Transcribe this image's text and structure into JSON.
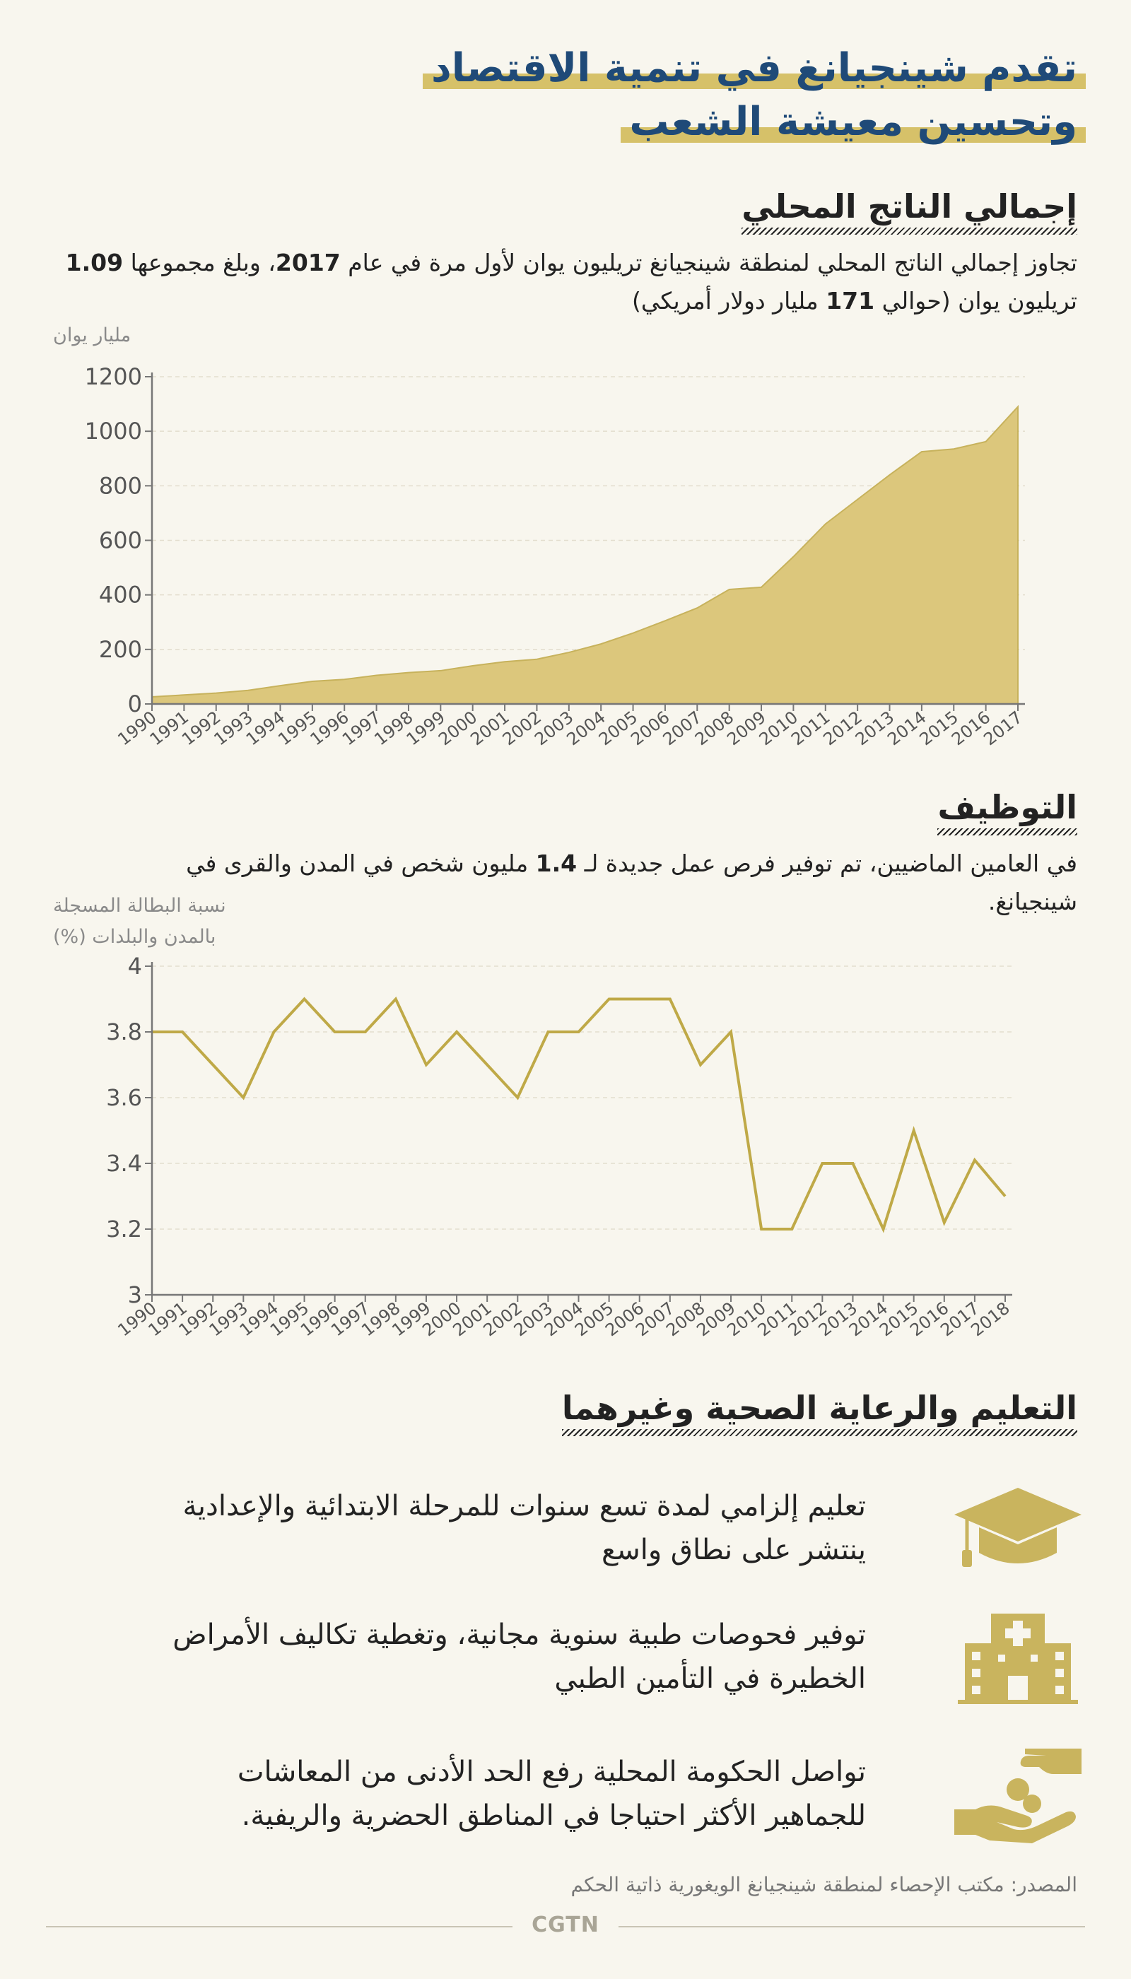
{
  "title": {
    "line1": "تقدم شينجيانغ في تنمية الاقتصاد",
    "line2": "وتحسين معيشة الشعب"
  },
  "gdp": {
    "heading": "إجمالي الناتج المحلي",
    "text_a": "تجاوز إجمالي الناتج المحلي لمنطقة شينجيانغ تريليون يوان لأول مرة في عام ",
    "year": "2017",
    "text_b": "، وبلغ مجموعها",
    "amount": "1.09",
    "text_c": " تريليون يوان (حوالي ",
    "usd": "171",
    "text_d": " مليار دولار أمريكي)",
    "unit_label": "مليار يوان"
  },
  "employment": {
    "heading": "التوظيف",
    "text_a": "في العامين الماضيين، تم توفير فرص عمل جديدة لـ ",
    "jobs": "1.4",
    "text_b": " مليون شخص في المدن والقرى في شينجيانغ.",
    "unit_label_1": "نسبة البطالة المسجلة",
    "unit_label_2": "بالمدن والبلدات (%)"
  },
  "social": {
    "heading": "التعليم والرعاية الصحية وغيرهما",
    "items": [
      {
        "icon": "graduation-cap-icon",
        "text": "تعليم إلزامي لمدة تسع سنوات للمرحلة الابتدائية والإعدادية ينتشر على نطاق واسع"
      },
      {
        "icon": "hospital-icon",
        "text": "توفير فحوصات طبية سنوية مجانية، وتغطية تكاليف الأمراض الخطيرة في التأمين الطبي"
      },
      {
        "icon": "hand-coins-icon",
        "text": "تواصل الحكومة المحلية رفع الحد الأدنى من المعاشات للجماهير الأكثر احتياجا في المناطق الحضرية والريفية."
      }
    ]
  },
  "source": "المصدر: مكتب الإحصاء لمنطقة شينجيانغ الويغورية ذاتية الحكم",
  "brand": "CGTN",
  "colors": {
    "accent": "#d6c169",
    "area_fill": "#d9c57a",
    "line": "#bfa947",
    "title": "#1f4a78"
  },
  "chart_data": [
    {
      "type": "area",
      "title": "إجمالي الناتج المحلي",
      "ylabel": "مليار يوان",
      "xlabel": "",
      "ylim": [
        0,
        1200
      ],
      "yticks": [
        0,
        200,
        400,
        600,
        800,
        1000,
        1200
      ],
      "categories": [
        "1990",
        "1991",
        "1992",
        "1993",
        "1994",
        "1995",
        "1996",
        "1997",
        "1998",
        "1999",
        "2000",
        "2001",
        "2002",
        "2003",
        "2004",
        "2005",
        "2006",
        "2007",
        "2008",
        "2009",
        "2010",
        "2011",
        "2012",
        "2013",
        "2014",
        "2015",
        "2016",
        "2017"
      ],
      "values": [
        26,
        33,
        40,
        50,
        67,
        83,
        90,
        105,
        115,
        122,
        140,
        155,
        164,
        189,
        220,
        260,
        305,
        352,
        420,
        428,
        540,
        660,
        750,
        840,
        925,
        935,
        962,
        1090
      ]
    },
    {
      "type": "line",
      "title": "التوظيف",
      "ylabel": "نسبة البطالة المسجلة بالمدن والبلدات (%)",
      "xlabel": "",
      "ylim": [
        3,
        4
      ],
      "yticks": [
        3,
        3.2,
        3.4,
        3.6,
        3.8,
        4
      ],
      "categories": [
        "1990",
        "1991",
        "1992",
        "1993",
        "1994",
        "1995",
        "1996",
        "1997",
        "1998",
        "1999",
        "2000",
        "2001",
        "2002",
        "2003",
        "2004",
        "2005",
        "2006",
        "2007",
        "2008",
        "2009",
        "2010",
        "2011",
        "2012",
        "2013",
        "2014",
        "2015",
        "2016",
        "2017",
        "2018"
      ],
      "values": [
        3.8,
        3.8,
        3.7,
        3.6,
        3.8,
        3.9,
        3.8,
        3.8,
        3.9,
        3.7,
        3.8,
        3.7,
        3.6,
        3.8,
        3.8,
        3.9,
        3.9,
        3.9,
        3.7,
        3.8,
        3.2,
        3.2,
        3.4,
        3.4,
        3.2,
        3.5,
        3.22,
        3.41,
        3.3
      ]
    }
  ]
}
